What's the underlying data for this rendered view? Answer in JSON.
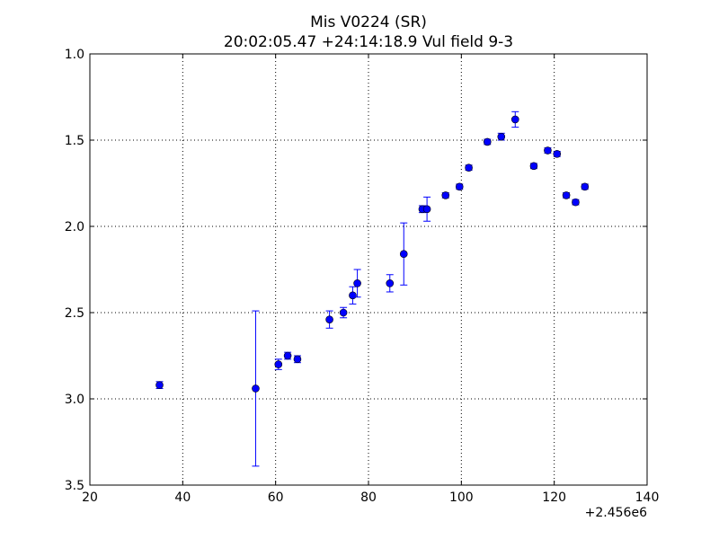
{
  "chart_data": {
    "type": "scatter",
    "title": "Mis V0224 (SR)",
    "subtitle": "20:02:05.47 +24:14:18.9 Vul field 9-3",
    "xlabel": "",
    "ylabel": "",
    "x_offset_label": "+2.456e6",
    "xlim": [
      20,
      140
    ],
    "ylim": [
      1.0,
      3.5
    ],
    "y_inverted": true,
    "grid": true,
    "x_ticks": [
      20,
      40,
      60,
      80,
      100,
      120,
      140
    ],
    "x_tick_labels": [
      "20",
      "40",
      "60",
      "80",
      "100",
      "120",
      "140"
    ],
    "y_ticks": [
      1.0,
      1.5,
      2.0,
      2.5,
      3.0,
      3.5
    ],
    "y_tick_labels": [
      "1.0",
      "1.5",
      "2.0",
      "2.5",
      "3.0",
      "3.5"
    ],
    "marker_color": "#0000ff",
    "errorbar_color": "#0000ff",
    "points": [
      {
        "x": 35.0,
        "y": 2.92,
        "err": 0.02
      },
      {
        "x": 55.7,
        "y": 2.94,
        "err": 0.45
      },
      {
        "x": 60.6,
        "y": 2.8,
        "err": 0.03
      },
      {
        "x": 62.6,
        "y": 2.75,
        "err": 0.02
      },
      {
        "x": 64.7,
        "y": 2.77,
        "err": 0.02
      },
      {
        "x": 71.6,
        "y": 2.54,
        "err": 0.05
      },
      {
        "x": 74.6,
        "y": 2.5,
        "err": 0.03
      },
      {
        "x": 76.6,
        "y": 2.4,
        "err": 0.05
      },
      {
        "x": 77.6,
        "y": 2.33,
        "err": 0.08
      },
      {
        "x": 84.6,
        "y": 2.33,
        "err": 0.05
      },
      {
        "x": 87.6,
        "y": 2.16,
        "err": 0.18
      },
      {
        "x": 91.6,
        "y": 1.9,
        "err": 0.02
      },
      {
        "x": 92.6,
        "y": 1.9,
        "err": 0.07
      },
      {
        "x": 96.6,
        "y": 1.82,
        "err": 0.015
      },
      {
        "x": 99.6,
        "y": 1.77,
        "err": 0.015
      },
      {
        "x": 101.6,
        "y": 1.66,
        "err": 0.015
      },
      {
        "x": 105.6,
        "y": 1.51,
        "err": 0.015
      },
      {
        "x": 108.6,
        "y": 1.48,
        "err": 0.02
      },
      {
        "x": 111.6,
        "y": 1.38,
        "err": 0.045
      },
      {
        "x": 115.6,
        "y": 1.65,
        "err": 0.015
      },
      {
        "x": 118.6,
        "y": 1.56,
        "err": 0.015
      },
      {
        "x": 120.6,
        "y": 1.58,
        "err": 0.015
      },
      {
        "x": 122.6,
        "y": 1.82,
        "err": 0.015
      },
      {
        "x": 124.6,
        "y": 1.86,
        "err": 0.015
      },
      {
        "x": 126.6,
        "y": 1.77,
        "err": 0.015
      }
    ]
  }
}
